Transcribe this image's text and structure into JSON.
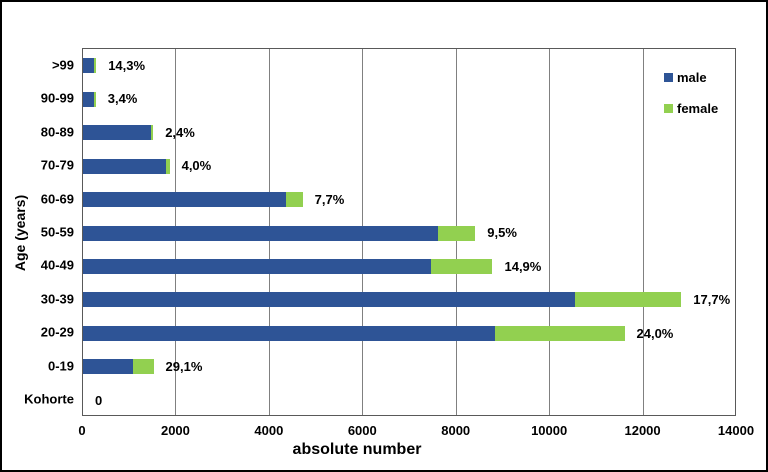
{
  "chart_data": {
    "type": "bar",
    "orientation": "horizontal",
    "stacked": true,
    "title": "",
    "xlabel": "absolute number",
    "ylabel": "Age (years)",
    "xlim": [
      0,
      14000
    ],
    "x_ticks": [
      0,
      2000,
      4000,
      6000,
      8000,
      10000,
      12000,
      14000
    ],
    "grid": "vertical-gridlines-on",
    "legend_position": "inside-top-right",
    "categories": [
      ">99",
      "90-99",
      "80-89",
      "70-79",
      "60-69",
      "50-59",
      "40-49",
      "30-39",
      "20-29",
      "0-19",
      "Kohorte"
    ],
    "series": [
      {
        "name": "male",
        "color": "#2E5496",
        "values": [
          240,
          230,
          1460,
          1780,
          4340,
          7600,
          7460,
          10540,
          8810,
          1070,
          0
        ]
      },
      {
        "name": "female",
        "color": "#92D050",
        "values": [
          40,
          8,
          36,
          74,
          362,
          798,
          1306,
          2267,
          2782,
          440,
          0
        ]
      }
    ],
    "bar_labels": [
      "14,3%",
      "3,4%",
      "2,4%",
      "4,0%",
      "7,7%",
      "9,5%",
      "14,9%",
      "17,7%",
      "24,0%",
      "29,1%",
      "0"
    ]
  },
  "legend": {
    "items": [
      {
        "label": "male",
        "color": "#2E5496"
      },
      {
        "label": "female",
        "color": "#92D050"
      }
    ]
  },
  "colors": {
    "male_bar": "#2E5496",
    "female_bar": "#92D050",
    "gridline": "#808080",
    "plot_border": "#595959",
    "frame": "#000000",
    "background": "#FFFFFF",
    "text": "#000000"
  }
}
